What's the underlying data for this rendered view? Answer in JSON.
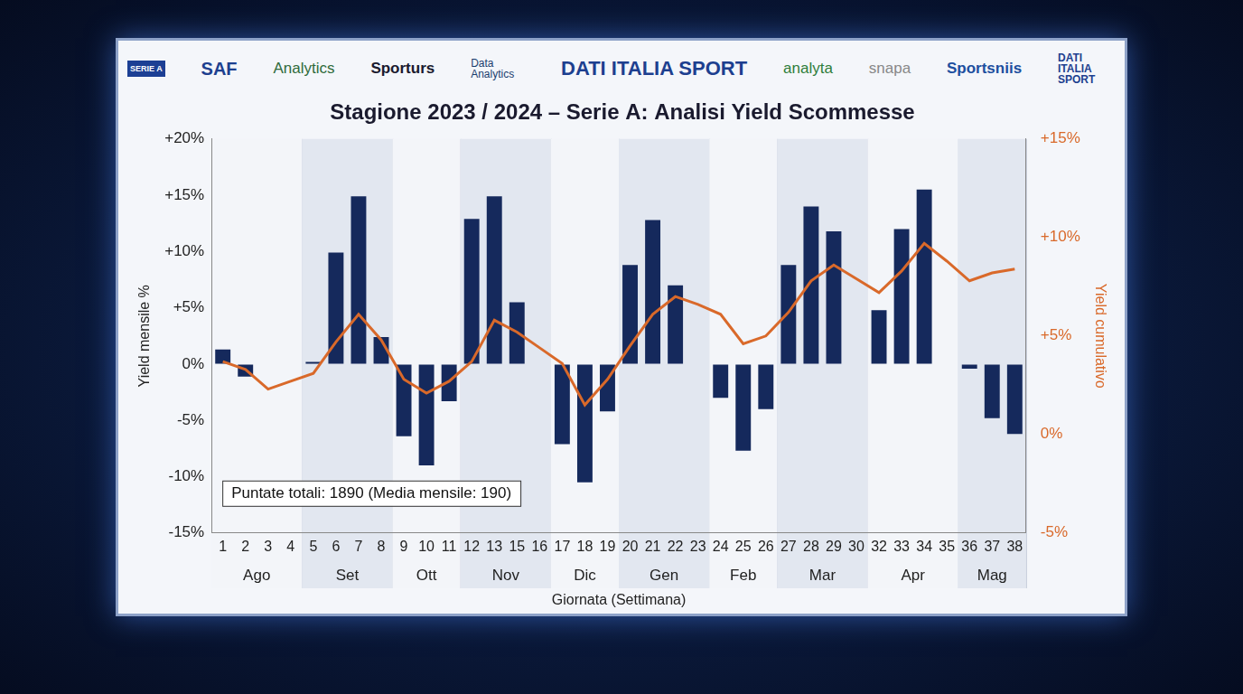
{
  "header": {
    "logos": [
      "SERIE A",
      "SAF",
      "Analytics",
      "Sporturs",
      "Data Analytics",
      "DATI ITALIA SPORT",
      "analyta",
      "snapa",
      "Sportsniis",
      "DATI ITALIA SPORT"
    ]
  },
  "chart_data": {
    "type": "bar",
    "title": "Stagione 2023 / 2024 – Serie A: Analisi Yield Scommesse",
    "x_label": "Giornata (Settimana)",
    "y_label": "Yield mensile %",
    "y2_label": "Yield cumulativo",
    "categories": [
      "1",
      "2",
      "3",
      "4",
      "5",
      "6",
      "7",
      "8",
      "9",
      "10",
      "11",
      "12",
      "13",
      "15",
      "16",
      "17",
      "18",
      "19",
      "20",
      "21",
      "22",
      "23",
      "24",
      "25",
      "26",
      "27",
      "28",
      "29",
      "30",
      "32",
      "33",
      "34",
      "35",
      "36",
      "37",
      "38"
    ],
    "groups": [
      {
        "label": "Ago",
        "first": "1",
        "last": "4"
      },
      {
        "label": "Set",
        "first": "5",
        "last": "8"
      },
      {
        "label": "Ott",
        "first": "9",
        "last": "11"
      },
      {
        "label": "Nov",
        "first": "12",
        "last": "16"
      },
      {
        "label": "Dic",
        "first": "17",
        "last": "19"
      },
      {
        "label": "Gen",
        "first": "20",
        "last": "23"
      },
      {
        "label": "Feb",
        "first": "24",
        "last": "26"
      },
      {
        "label": "Mar",
        "first": "27",
        "last": "30"
      },
      {
        "label": "Apr",
        "first": "32",
        "last": "35"
      },
      {
        "label": "Mag",
        "first": "36",
        "last": "38"
      }
    ],
    "series": [
      {
        "name": "Yield mensile %",
        "type": "bar",
        "color": "#15295c",
        "values": [
          1.3,
          -1.1,
          null,
          null,
          0.2,
          9.9,
          14.9,
          2.4,
          -6.4,
          -9.0,
          -3.3,
          12.9,
          14.9,
          5.5,
          null,
          -7.1,
          -10.5,
          -4.2,
          8.8,
          12.8,
          7.0,
          null,
          -3.0,
          -7.7,
          -4.0,
          8.8,
          14.0,
          11.8,
          null,
          4.8,
          12.0,
          15.5,
          null,
          -0.4,
          -4.8,
          -6.2
        ]
      },
      {
        "name": "Yield cumulativo",
        "type": "line",
        "axis": "y2",
        "color": "#d9692a",
        "values": [
          3.7,
          3.3,
          2.3,
          2.7,
          3.1,
          4.7,
          6.1,
          4.8,
          2.8,
          2.1,
          2.7,
          3.7,
          5.8,
          5.2,
          4.4,
          3.6,
          1.5,
          2.8,
          4.5,
          6.1,
          7.0,
          6.6,
          6.1,
          4.6,
          5.0,
          6.2,
          7.8,
          8.6,
          7.9,
          7.2,
          8.3,
          9.7,
          8.8,
          7.8,
          8.2,
          8.4
        ]
      }
    ],
    "ylim": [
      -15,
      20
    ],
    "yticks": [
      {
        "value": -15,
        "label": "-15%"
      },
      {
        "value": -10,
        "label": "-10%"
      },
      {
        "value": -5,
        "label": "-5%"
      },
      {
        "value": 0,
        "label": "0%"
      },
      {
        "value": 5,
        "label": "+5%"
      },
      {
        "value": 10,
        "label": "+10%"
      },
      {
        "value": 15,
        "label": "+15%"
      },
      {
        "value": 20,
        "label": "+20%"
      }
    ],
    "y2lim": [
      -5,
      15
    ],
    "y2ticks": [
      {
        "value": -5,
        "label": "-5%"
      },
      {
        "value": 0,
        "label": "0%"
      },
      {
        "value": 5,
        "label": "+5%"
      },
      {
        "value": 10,
        "label": "+10%"
      },
      {
        "value": 15,
        "label": "+15%"
      }
    ],
    "grid": false,
    "annotations": [
      {
        "text": "Puntate totali: 1890 (Media mensile: 190)"
      }
    ]
  }
}
